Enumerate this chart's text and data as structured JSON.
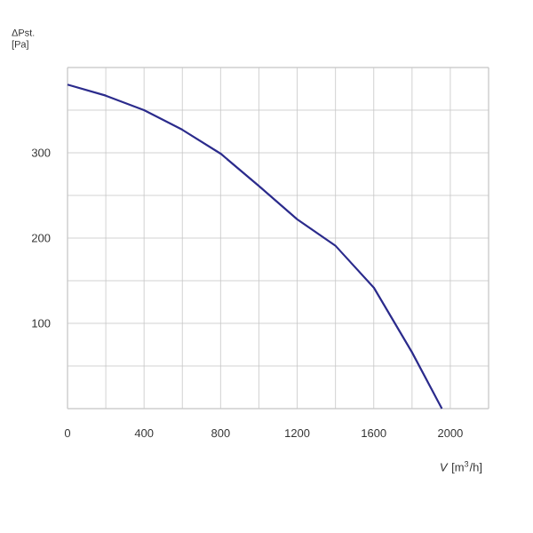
{
  "chart_data": {
    "type": "line",
    "xlabel": "*V* [m$^{3}$/h]",
    "ylabel": "ΔPst. [Pa]",
    "x": [
      0,
      200,
      400,
      600,
      800,
      1000,
      1200,
      1400,
      1600,
      1800,
      1956
    ],
    "series": [
      {
        "color": "#2b2b8c",
        "values": [
          380,
          367,
          350,
          327,
          299,
          261,
          222,
          191,
          142,
          66,
          0
        ]
      }
    ],
    "xlim": [
      0,
      2200
    ],
    "ylim": [
      0,
      400
    ],
    "xticks": [
      0,
      {
        "value": 200,
        "label": null
      },
      400,
      {
        "value": 600,
        "label": null
      },
      800,
      {
        "value": 1000,
        "label": null
      },
      1200,
      {
        "value": 1400,
        "label": null
      },
      1600,
      {
        "value": 1800,
        "label": null
      },
      2000,
      {
        "value": 2200,
        "label": null
      }
    ],
    "yticks": [
      {
        "value": 0,
        "label": null
      },
      {
        "value": 50,
        "label": null
      },
      100,
      {
        "value": 150,
        "label": null
      },
      200,
      {
        "value": 250,
        "label": null
      },
      300,
      {
        "value": 350,
        "label": null
      },
      {
        "value": 400,
        "label": null
      }
    ],
    "grid": true,
    "line_style": "solid",
    "marker": "none"
  }
}
